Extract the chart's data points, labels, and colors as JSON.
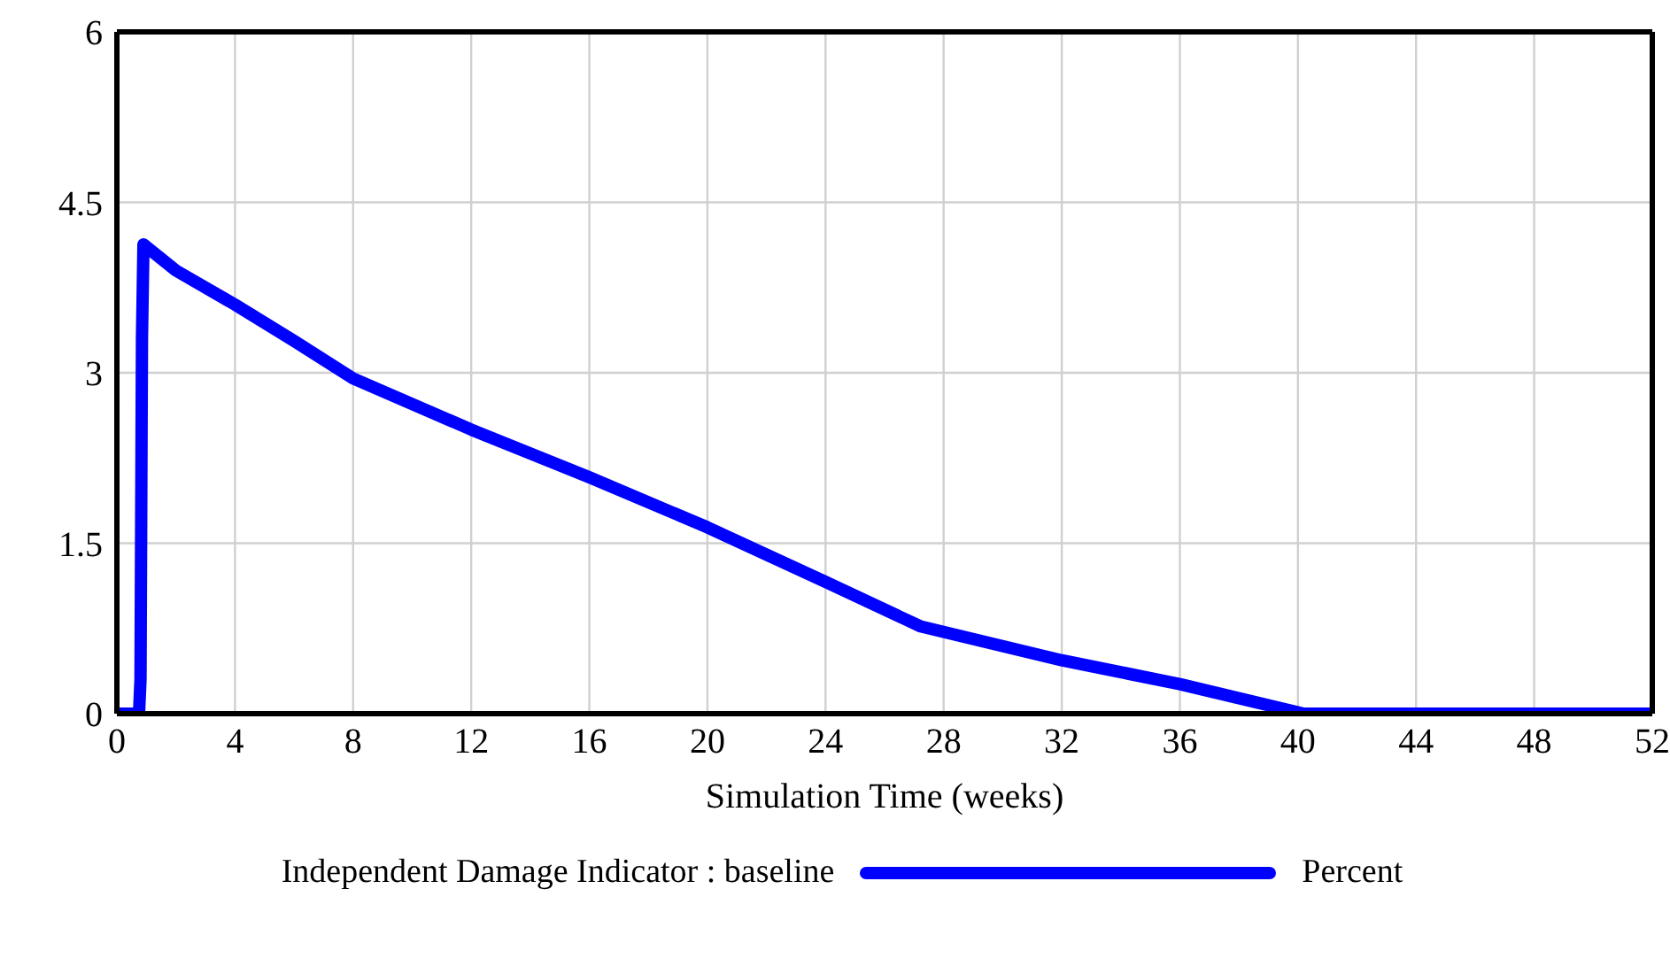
{
  "chart_data": {
    "type": "line",
    "xlabel": "Simulation Time (weeks)",
    "x": [
      0,
      0.75,
      0.8,
      0.85,
      0.9,
      2,
      4,
      6,
      8,
      12,
      16,
      20,
      24,
      27.2,
      32,
      36,
      40.2,
      44,
      48,
      52
    ],
    "series": [
      {
        "name": "Independent Damage Indicator : baseline",
        "color": "#0000ff",
        "values": [
          0,
          0,
          0.3,
          3.3,
          4.13,
          3.9,
          3.6,
          3.28,
          2.95,
          2.5,
          2.08,
          1.64,
          1.16,
          0.77,
          0.47,
          0.26,
          0,
          0,
          0,
          0
        ]
      }
    ],
    "xlim": [
      0,
      52
    ],
    "xticks": [
      0,
      4,
      8,
      12,
      16,
      20,
      24,
      28,
      32,
      36,
      40,
      44,
      48,
      52
    ],
    "ylim": [
      0,
      6
    ],
    "yticks": [
      0,
      1.5,
      3,
      4.5,
      6
    ],
    "grid": true,
    "legend": "bottom",
    "line_style": "solid",
    "annotations": [
      "Percent"
    ]
  }
}
